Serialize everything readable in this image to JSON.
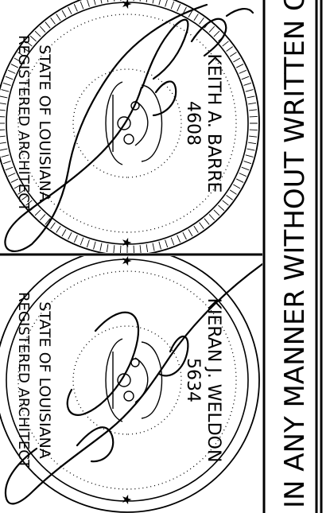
{
  "seals": {
    "top": {
      "name_arc": "KEITH A. BARRE",
      "number": "4608",
      "lower_left": "STATE OF LOUISIANA",
      "lower_right": "REGISTERED ARCHITECT"
    },
    "bottom": {
      "name_arc": "KIERAN J. WELDON",
      "number": "5634",
      "lower_left": "STATE OF LOUISIANA",
      "lower_right": "REGISTERED ARCHITECT"
    }
  },
  "side_strip": {
    "text": "IN ANY MANNER WITHOUT WRITTEN CONSENT O"
  },
  "colors": {
    "ink": "#000000",
    "paper": "#ffffff"
  }
}
